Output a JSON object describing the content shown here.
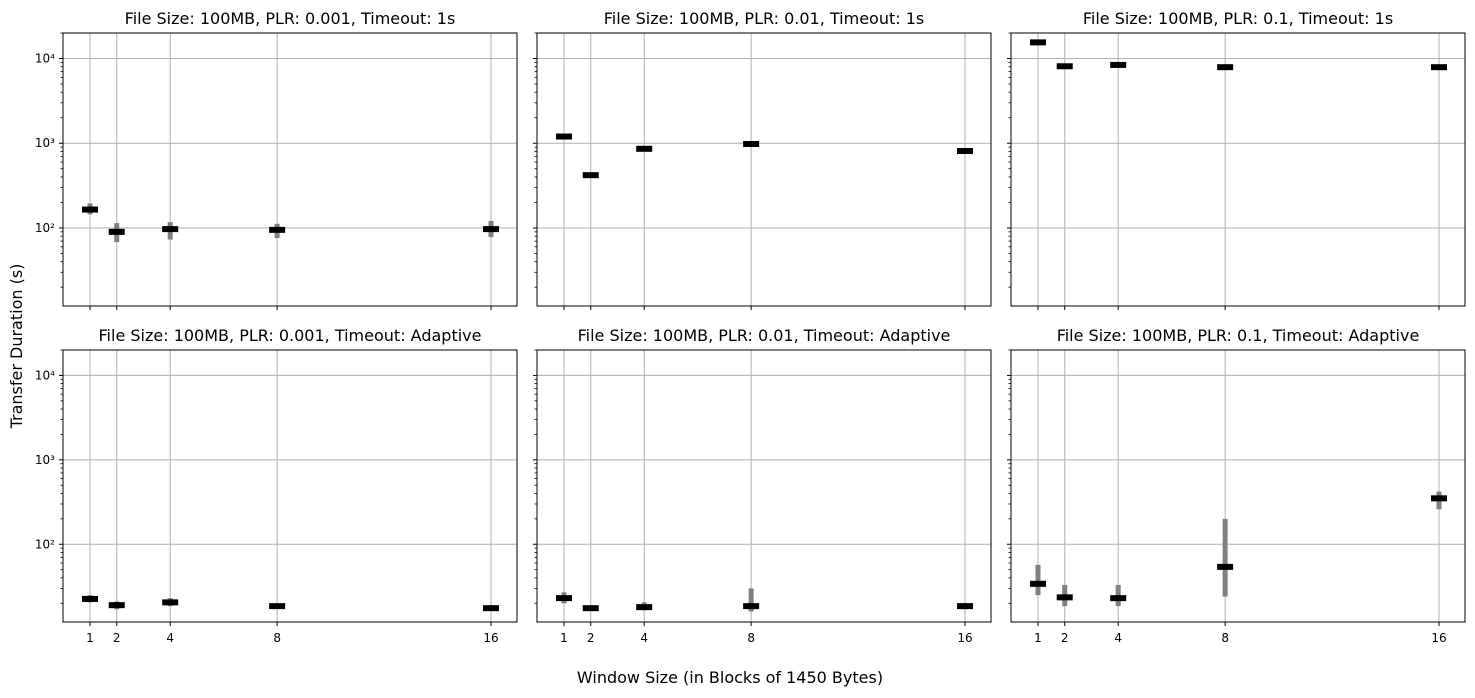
{
  "figure": {
    "ylabel": "Transfer Duration (s)",
    "xlabel": "Window Size (in Blocks of 1450 Bytes)",
    "grid": true,
    "yscale": "log",
    "ylim": [
      12,
      20000
    ],
    "x_ticks": [
      1,
      2,
      4,
      8,
      16
    ],
    "y_ticks": [
      {
        "value": 100,
        "label": "10²"
      },
      {
        "value": 1000,
        "label": "10³"
      },
      {
        "value": 10000,
        "label": "10⁴"
      }
    ],
    "colors": {
      "median": "#000000",
      "range": "#808080",
      "grid": "#b0b0b0"
    }
  },
  "chart_data": [
    {
      "type": "boxplot",
      "title": "File Size: 100MB, PLR: 0.001, Timeout: 1s",
      "x": [
        1,
        2,
        4,
        8,
        16
      ],
      "median": [
        165,
        90,
        97,
        95,
        97
      ],
      "low": [
        145,
        68,
        73,
        76,
        78
      ],
      "high": [
        195,
        114,
        117,
        112,
        121
      ]
    },
    {
      "type": "boxplot",
      "title": "File Size: 100MB, PLR: 0.01, Timeout: 1s",
      "x": [
        1,
        2,
        4,
        8,
        16
      ],
      "median": [
        1200,
        420,
        860,
        980,
        810
      ],
      "low": [
        1150,
        400,
        820,
        940,
        770
      ],
      "high": [
        1260,
        440,
        900,
        1020,
        850
      ]
    },
    {
      "type": "boxplot",
      "title": "File Size: 100MB, PLR: 0.1, Timeout: 1s",
      "x": [
        1,
        2,
        4,
        8,
        16
      ],
      "median": [
        15500,
        8100,
        8400,
        7900,
        7900
      ],
      "low": [
        14800,
        7700,
        8000,
        7500,
        7500
      ],
      "high": [
        16200,
        8500,
        8800,
        8300,
        8300
      ]
    },
    {
      "type": "boxplot",
      "title": "File Size: 100MB, PLR: 0.001, Timeout: Adaptive",
      "x": [
        1,
        2,
        4,
        8,
        16
      ],
      "median": [
        22.5,
        19,
        20.5,
        18.5,
        17.5
      ],
      "low": [
        20.5,
        17,
        18.5,
        17.5,
        16.5
      ],
      "high": [
        25,
        21,
        23,
        19.5,
        19
      ]
    },
    {
      "type": "boxplot",
      "title": "File Size: 100MB, PLR: 0.01, Timeout: Adaptive",
      "x": [
        1,
        2,
        4,
        8,
        16
      ],
      "median": [
        23,
        17.5,
        18,
        18.5,
        18.5
      ],
      "low": [
        20,
        16.5,
        16.5,
        16,
        17
      ],
      "high": [
        27,
        18.5,
        20.5,
        30,
        20
      ]
    },
    {
      "type": "boxplot",
      "title": "File Size: 100MB, PLR: 0.1, Timeout: Adaptive",
      "x": [
        1,
        2,
        4,
        8,
        16
      ],
      "median": [
        34,
        23.5,
        23,
        54,
        350
      ],
      "low": [
        25,
        18.5,
        18.5,
        24,
        260
      ],
      "high": [
        57,
        33,
        33,
        200,
        420
      ]
    }
  ]
}
